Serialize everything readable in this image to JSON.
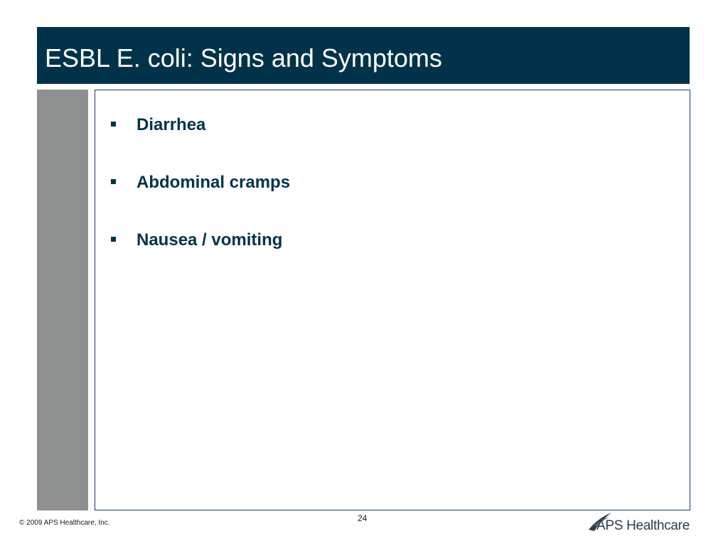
{
  "slide": {
    "title": "ESBL E. coli: Signs and Symptoms",
    "bullets": [
      "Diarrhea",
      "Abdominal cramps",
      "Nausea / vomiting"
    ]
  },
  "footer": {
    "copyright": "© 2009 APS Healthcare, Inc.",
    "page_number": "24",
    "logo_text": "APS Healthcare"
  },
  "colors": {
    "title_bar": "#003349",
    "side_block": "#8e908f",
    "text_accent": "#003349"
  },
  "icons": {
    "bullet": "square-bullet-icon",
    "logo": "aps-swoosh-logo-icon"
  }
}
